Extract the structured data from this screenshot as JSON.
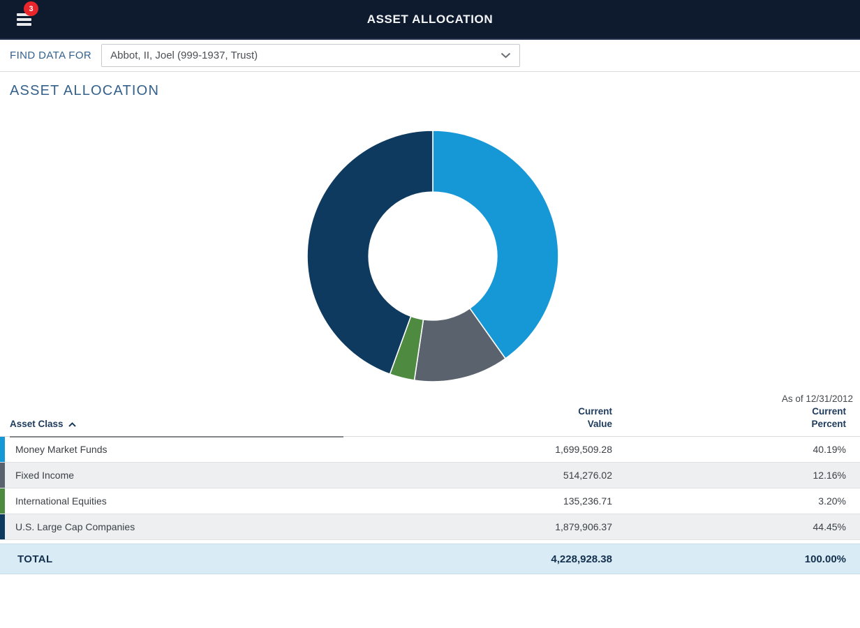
{
  "header": {
    "title": "ASSET ALLOCATION",
    "menu_badge_count": "3",
    "bg_color": "#0e1b2e"
  },
  "icons": {
    "menu": "hamburger-icon",
    "menu_badge": "notification-badge",
    "account_dropdown": "chevron-down-icon",
    "sort": "caret-up-icon"
  },
  "find_data": {
    "label": "FIND DATA FOR",
    "selected_option": "Abbot, II, Joel (999-1937, Trust)"
  },
  "page": {
    "section_title": "ASSET ALLOCATION",
    "as_of": "As of 12/31/2012"
  },
  "chart_data": {
    "type": "pie",
    "subtype": "donut",
    "title": "Asset Allocation",
    "start_angle_deg": -90,
    "direction": "clockwise",
    "inner_radius_ratio": 0.51,
    "legend_position": "none",
    "series": [
      {
        "name": "Money Market Funds",
        "value": 1699509.28,
        "percent": 40.19,
        "color": "#1697d6"
      },
      {
        "name": "Fixed Income",
        "value": 514276.02,
        "percent": 12.16,
        "color": "#5a626d"
      },
      {
        "name": "International Equities",
        "value": 135236.71,
        "percent": 3.2,
        "color": "#4e8b40"
      },
      {
        "name": "U.S. Large Cap Companies",
        "value": 1879906.37,
        "percent": 44.45,
        "color": "#0e3a5f"
      }
    ]
  },
  "table": {
    "columns": [
      {
        "label": "Asset Class"
      },
      {
        "label": "Current Value"
      },
      {
        "label": "Current Percent"
      }
    ],
    "sort": {
      "column": "Asset Class",
      "direction": "ascending"
    },
    "rows": [
      {
        "asset_class": "Money Market Funds",
        "current_value": "1,699,509.28",
        "current_percent": "40.19%",
        "color": "#1697d6"
      },
      {
        "asset_class": "Fixed Income",
        "current_value": "514,276.02",
        "current_percent": "12.16%",
        "color": "#5a626d"
      },
      {
        "asset_class": "International Equities",
        "current_value": "135,236.71",
        "current_percent": "3.20%",
        "color": "#4e8b40"
      },
      {
        "asset_class": "U.S. Large Cap Companies",
        "current_value": "1,879,906.37",
        "current_percent": "44.45%",
        "color": "#0e3a5f"
      }
    ],
    "total": {
      "label": "TOTAL",
      "current_value": "4,228,928.38",
      "current_percent": "100.00%"
    }
  }
}
